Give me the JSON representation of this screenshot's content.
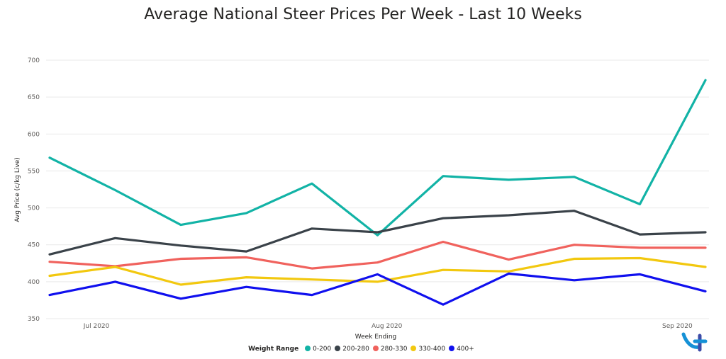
{
  "chart_data": {
    "type": "line",
    "title": "Average National Steer Prices Per Week - Last 10 Weeks",
    "xlabel": "Week Ending",
    "ylabel": "Avg Price (c/kg Live)",
    "ylim": [
      350,
      700
    ],
    "yticks": [
      350,
      400,
      450,
      500,
      550,
      600,
      650,
      700
    ],
    "x": [
      "2020-06-26",
      "2020-07-03",
      "2020-07-10",
      "2020-07-17",
      "2020-07-24",
      "2020-07-31",
      "2020-08-07",
      "2020-08-14",
      "2020-08-21",
      "2020-08-28",
      "2020-09-04"
    ],
    "xtick_labels": [
      {
        "label": "Jul 2020",
        "date": "2020-07-01"
      },
      {
        "label": "Aug 2020",
        "date": "2020-08-01"
      },
      {
        "label": "Sep 2020",
        "date": "2020-09-01"
      }
    ],
    "grid": true,
    "legend": {
      "title": "Weight Range",
      "placement": "bottom"
    },
    "series": [
      {
        "name": "0-200",
        "color": "#12b3a6",
        "values": [
          568,
          524,
          477,
          493,
          533,
          463,
          543,
          538,
          542,
          505,
          673
        ]
      },
      {
        "name": "200-280",
        "color": "#3a4249",
        "values": [
          437,
          459,
          449,
          441,
          472,
          467,
          486,
          490,
          496,
          464,
          467
        ]
      },
      {
        "name": "280-330",
        "color": "#f0625d",
        "values": [
          427,
          421,
          431,
          433,
          418,
          426,
          454,
          430,
          450,
          446,
          446
        ]
      },
      {
        "name": "330-400",
        "color": "#f2c80f",
        "values": [
          408,
          420,
          396,
          406,
          403,
          400,
          416,
          414,
          431,
          432,
          420
        ]
      },
      {
        "name": "400+",
        "color": "#1010ee",
        "values": [
          382,
          400,
          377,
          393,
          382,
          410,
          369,
          411,
          402,
          410,
          387
        ]
      }
    ]
  },
  "logo": {
    "name": "brand-logo",
    "colors": [
      "#1591d6",
      "#3d4ca8"
    ]
  }
}
